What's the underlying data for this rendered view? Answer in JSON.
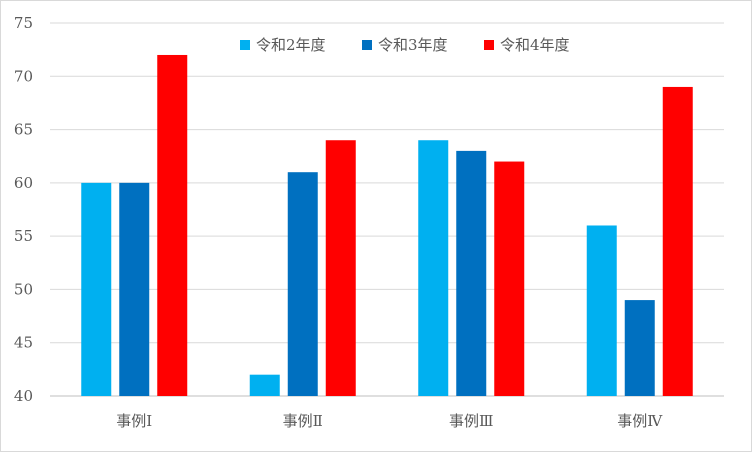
{
  "chart_data": {
    "type": "bar",
    "categories": [
      "事例Ⅰ",
      "事例Ⅱ",
      "事例Ⅲ",
      "事例Ⅳ"
    ],
    "series": [
      {
        "name": "令和2年度",
        "color": "#00b0f0",
        "values": [
          60,
          42,
          64,
          56
        ]
      },
      {
        "name": "令和3年度",
        "color": "#0070c0",
        "values": [
          60,
          61,
          63,
          49
        ]
      },
      {
        "name": "令和4年度",
        "color": "#ff0000",
        "values": [
          72,
          64,
          62,
          69
        ]
      }
    ],
    "title": "",
    "xlabel": "",
    "ylabel": "",
    "ylim": [
      40,
      75
    ],
    "yticks": [
      40,
      45,
      50,
      55,
      60,
      65,
      70,
      75
    ],
    "grid": true,
    "legend": "top-center"
  }
}
